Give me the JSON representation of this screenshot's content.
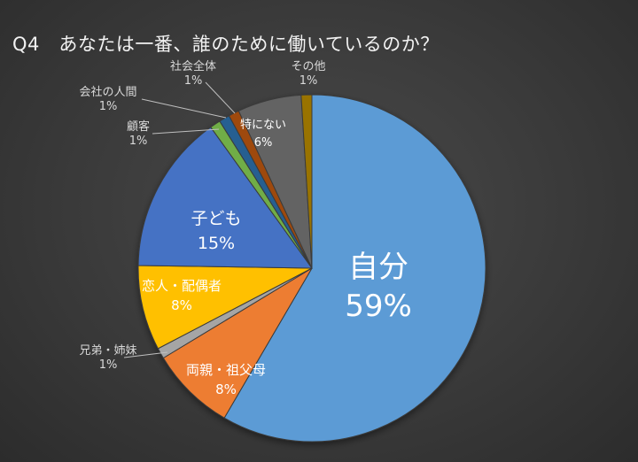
{
  "title": "Q4　あなたは一番、誰のために働いているのか？",
  "chart_data": {
    "type": "pie",
    "title": "Q4　あなたは一番、誰のために働いているのか？",
    "start_angle_deg": 0,
    "direction": "clockwise",
    "slices": [
      {
        "label": "自分",
        "value": 59,
        "value_label": "59%",
        "color": "#5b9bd5",
        "label_position": "inside"
      },
      {
        "label": "両親・祖父母",
        "value": 8,
        "value_label": "8%",
        "color": "#ed7d31",
        "label_position": "inside"
      },
      {
        "label": "兄弟・姉妹",
        "value": 1,
        "value_label": "1%",
        "color": "#a5a5a5",
        "label_position": "outside"
      },
      {
        "label": "恋人・配偶者",
        "value": 8,
        "value_label": "8%",
        "color": "#ffc000",
        "label_position": "inside"
      },
      {
        "label": "子ども",
        "value": 15,
        "value_label": "15%",
        "color": "#4472c4",
        "label_position": "inside"
      },
      {
        "label": "顧客",
        "value": 1,
        "value_label": "1%",
        "color": "#70ad47",
        "label_position": "outside"
      },
      {
        "label": "会社の人間",
        "value": 1,
        "value_label": "1%",
        "color": "#255e91",
        "label_position": "outside"
      },
      {
        "label": "社会全体",
        "value": 1,
        "value_label": "1%",
        "color": "#9e480e",
        "label_position": "outside"
      },
      {
        "label": "特にない",
        "value": 6,
        "value_label": "6%",
        "color": "#636363",
        "label_position": "inside"
      },
      {
        "label": "その他",
        "value": 1,
        "value_label": "1%",
        "color": "#997300",
        "label_position": "outside"
      }
    ]
  }
}
